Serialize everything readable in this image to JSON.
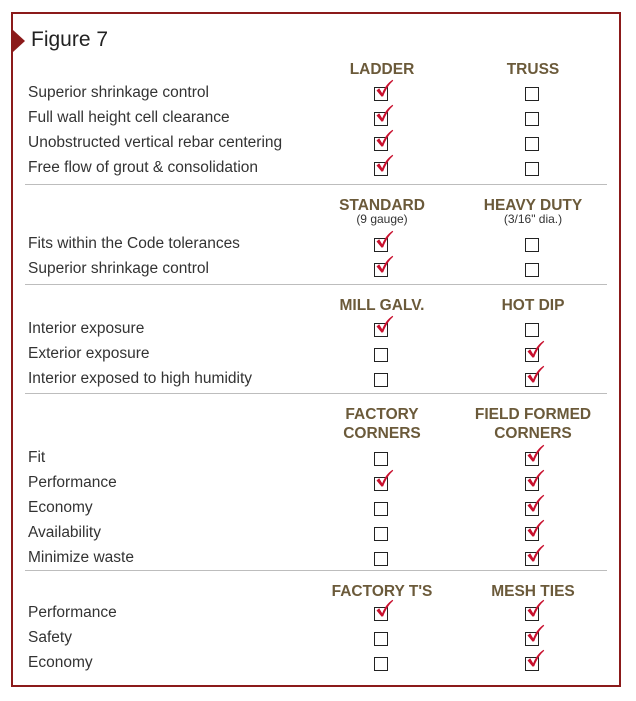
{
  "figure": {
    "title": "Figure 7"
  },
  "colors": {
    "border": "#8b1a1a",
    "header": "#6b5a3a",
    "check": "#c8102e"
  },
  "icons": {
    "checked": "red-check-icon",
    "unchecked": "empty-checkbox-icon"
  },
  "sections": [
    {
      "columns": [
        {
          "header": "LADDER",
          "sub": ""
        },
        {
          "header": "TRUSS",
          "sub": ""
        }
      ],
      "rows": [
        {
          "label": "Superior shrinkage control",
          "checks": [
            true,
            false
          ]
        },
        {
          "label": "Full wall height cell clearance",
          "checks": [
            true,
            false
          ]
        },
        {
          "label": "Unobstructed vertical rebar centering",
          "checks": [
            true,
            false
          ]
        },
        {
          "label": "Free flow of grout & consolidation",
          "checks": [
            true,
            false
          ]
        }
      ]
    },
    {
      "columns": [
        {
          "header": "STANDARD",
          "sub": "(9 gauge)"
        },
        {
          "header": "HEAVY DUTY",
          "sub": "(3/16\" dia.)"
        }
      ],
      "rows": [
        {
          "label": "Fits within the Code tolerances",
          "checks": [
            true,
            false
          ]
        },
        {
          "label": "Superior shrinkage control",
          "checks": [
            true,
            false
          ]
        }
      ]
    },
    {
      "columns": [
        {
          "header": "MILL GALV.",
          "sub": ""
        },
        {
          "header": "HOT DIP",
          "sub": ""
        }
      ],
      "rows": [
        {
          "label": "Interior exposure",
          "checks": [
            true,
            false
          ]
        },
        {
          "label": "Exterior exposure",
          "checks": [
            false,
            true
          ]
        },
        {
          "label": "Interior exposed to high humidity",
          "checks": [
            false,
            true
          ]
        }
      ]
    },
    {
      "columns": [
        {
          "header": "FACTORY\nCORNERS",
          "sub": ""
        },
        {
          "header": "FIELD FORMED\nCORNERS",
          "sub": ""
        }
      ],
      "rows": [
        {
          "label": "Fit",
          "checks": [
            false,
            true
          ]
        },
        {
          "label": "Performance",
          "checks": [
            true,
            true
          ]
        },
        {
          "label": "Economy",
          "checks": [
            false,
            true
          ]
        },
        {
          "label": "Availability",
          "checks": [
            false,
            true
          ]
        },
        {
          "label": "Minimize waste",
          "checks": [
            false,
            true
          ]
        }
      ]
    },
    {
      "columns": [
        {
          "header": "FACTORY T'S",
          "sub": ""
        },
        {
          "header": "MESH TIES",
          "sub": ""
        }
      ],
      "rows": [
        {
          "label": "Performance",
          "checks": [
            true,
            true
          ]
        },
        {
          "label": "Safety",
          "checks": [
            false,
            true
          ]
        },
        {
          "label": "Economy",
          "checks": [
            false,
            true
          ]
        }
      ]
    }
  ]
}
